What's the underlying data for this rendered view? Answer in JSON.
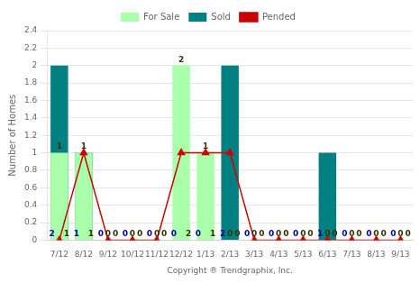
{
  "chart_data": {
    "type": "bar",
    "categories": [
      "7/12",
      "8/12",
      "9/12",
      "10/12",
      "11/12",
      "12/12",
      "1/13",
      "2/13",
      "3/13",
      "4/13",
      "5/13",
      "6/13",
      "7/13",
      "8/13",
      "9/13"
    ],
    "series": [
      {
        "name": "For Sale",
        "color": "#aaffaa",
        "values": [
          1,
          1,
          0,
          0,
          0,
          2,
          1,
          0,
          0,
          0,
          0,
          0,
          0,
          0,
          0
        ],
        "data_labels": true
      },
      {
        "name": "Sold",
        "color": "#008080",
        "values": [
          2,
          1,
          0,
          0,
          0,
          0,
          0,
          2,
          0,
          0,
          0,
          1,
          0,
          0,
          0
        ],
        "data_labels": true
      },
      {
        "name": "Pended",
        "type": "line",
        "color": "#cc0000",
        "marker": "triangle",
        "values": [
          0,
          1,
          0,
          0,
          0,
          1,
          1,
          1,
          0,
          0,
          0,
          0,
          0,
          0,
          0
        ]
      }
    ],
    "xlabel": "Copyright ® Trendgraphix, Inc.",
    "ylabel": "Number of Homes",
    "ylim": [
      0,
      2.4
    ],
    "yticks": [
      0,
      0.2,
      0.4,
      0.6,
      0.8,
      1.0,
      1.2,
      1.4,
      1.6,
      1.8,
      2.0,
      2.2,
      2.4
    ],
    "grid": true,
    "legend": "top"
  }
}
